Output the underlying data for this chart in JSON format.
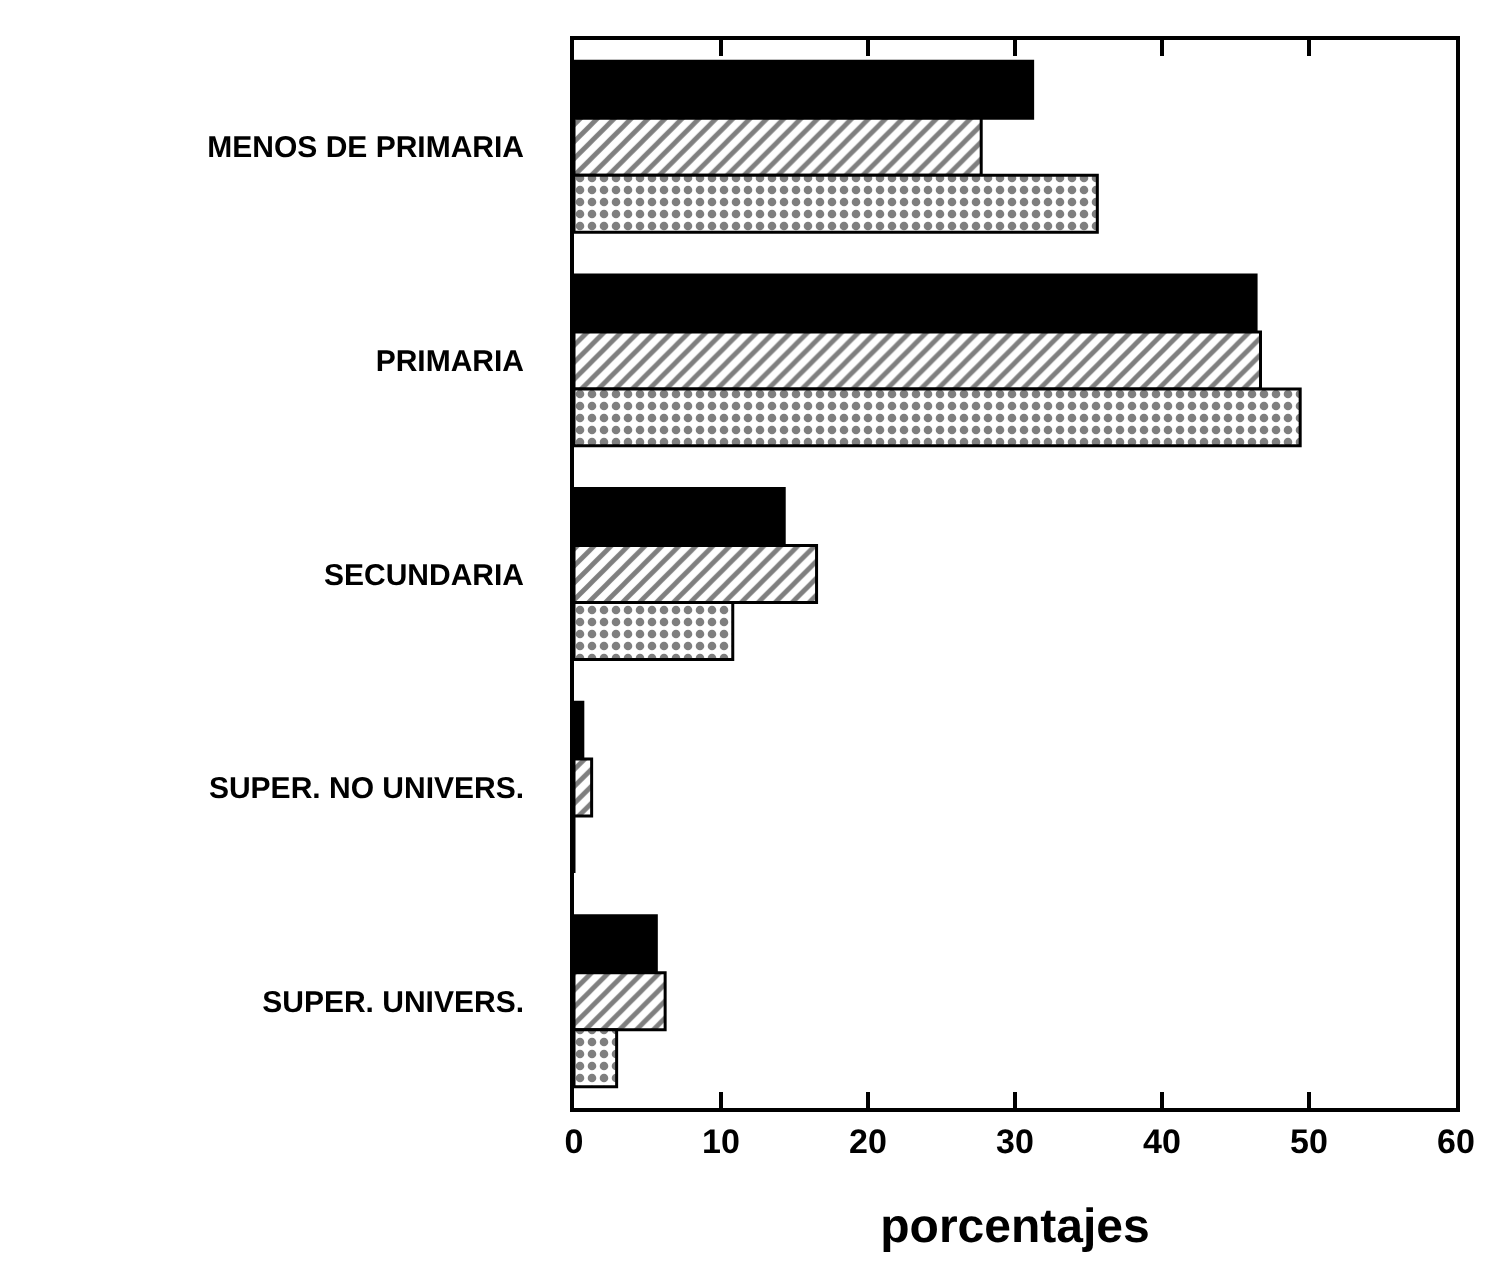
{
  "chart_data": {
    "type": "bar",
    "orientation": "horizontal",
    "xlabel": "porcentajes",
    "categories": [
      "MENOS DE PRIMARIA",
      "PRIMARIA",
      "SECUNDARIA",
      "SUPER. NO UNIVERS.",
      "SUPER. UNIVERS."
    ],
    "series": [
      {
        "color": "#000000",
        "values": [
          31.2,
          46.4,
          14.3,
          0.6,
          5.6
        ]
      },
      {
        "color": "#000000",
        "values": [
          27.7,
          46.7,
          16.5,
          1.2,
          6.2
        ]
      },
      {
        "color": "#000000",
        "values": [
          35.6,
          49.4,
          10.8,
          0,
          2.9
        ]
      }
    ],
    "xlim": [
      0,
      60
    ],
    "xticks": [
      0,
      10,
      20,
      30,
      40,
      50,
      60
    ]
  }
}
